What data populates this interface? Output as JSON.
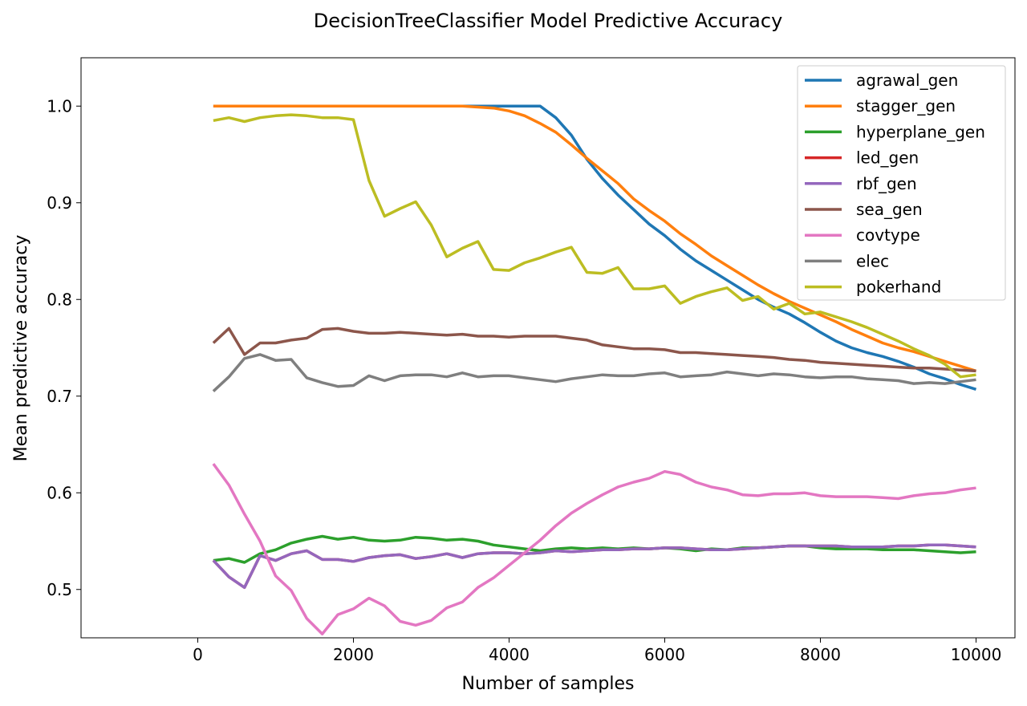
{
  "chart_data": {
    "type": "line",
    "title": "DecisionTreeClassifier Model Predictive Accuracy",
    "xlabel": "Number of samples",
    "ylabel": "Mean predictive accuracy",
    "xlim": [
      -1500,
      10500
    ],
    "ylim": [
      0.45,
      1.05
    ],
    "xticks": [
      0,
      2000,
      4000,
      6000,
      8000,
      10000
    ],
    "xtick_labels": [
      "0",
      "2000",
      "4000",
      "6000",
      "8000",
      "10000"
    ],
    "yticks": [
      0.5,
      0.6,
      0.7,
      0.8,
      0.9,
      1.0
    ],
    "ytick_labels": [
      "0.5",
      "0.6",
      "0.7",
      "0.8",
      "0.9",
      "1.0"
    ],
    "grid": false,
    "legend_position": "top-right",
    "x": [
      200,
      400,
      600,
      800,
      1000,
      1200,
      1400,
      1600,
      1800,
      2000,
      2200,
      2400,
      2600,
      2800,
      3000,
      3200,
      3400,
      3600,
      3800,
      4000,
      4200,
      4400,
      4600,
      4800,
      5000,
      5200,
      5400,
      5600,
      5800,
      6000,
      6200,
      6400,
      6600,
      6800,
      7000,
      7200,
      7400,
      7600,
      7800,
      8000,
      8200,
      8400,
      8600,
      8800,
      9000,
      9200,
      9400,
      9600,
      9800,
      10000
    ],
    "series": [
      {
        "name": "agrawal_gen",
        "color": "#1f77b4",
        "values": [
          1.0,
          1.0,
          1.0,
          1.0,
          1.0,
          1.0,
          1.0,
          1.0,
          1.0,
          1.0,
          1.0,
          1.0,
          1.0,
          1.0,
          1.0,
          1.0,
          1.0,
          1.0,
          1.0,
          1.0,
          1.0,
          1.0,
          0.988,
          0.97,
          0.945,
          0.925,
          0.908,
          0.893,
          0.878,
          0.866,
          0.852,
          0.84,
          0.83,
          0.82,
          0.81,
          0.8,
          0.792,
          0.785,
          0.776,
          0.766,
          0.757,
          0.75,
          0.745,
          0.741,
          0.736,
          0.73,
          0.723,
          0.718,
          0.712,
          0.707
        ]
      },
      {
        "name": "stagger_gen",
        "color": "#ff7f0e",
        "values": [
          1.0,
          1.0,
          1.0,
          1.0,
          1.0,
          1.0,
          1.0,
          1.0,
          1.0,
          1.0,
          1.0,
          1.0,
          1.0,
          1.0,
          1.0,
          1.0,
          1.0,
          0.999,
          0.998,
          0.995,
          0.99,
          0.982,
          0.973,
          0.96,
          0.946,
          0.933,
          0.92,
          0.904,
          0.892,
          0.881,
          0.868,
          0.857,
          0.845,
          0.835,
          0.825,
          0.815,
          0.806,
          0.798,
          0.791,
          0.784,
          0.777,
          0.769,
          0.762,
          0.755,
          0.75,
          0.746,
          0.741,
          0.736,
          0.731,
          0.726
        ]
      },
      {
        "name": "hyperplane_gen",
        "color": "#2ca02c",
        "values": [
          0.53,
          0.532,
          0.528,
          0.537,
          0.541,
          0.548,
          0.552,
          0.555,
          0.552,
          0.554,
          0.551,
          0.55,
          0.551,
          0.554,
          0.553,
          0.551,
          0.552,
          0.55,
          0.546,
          0.544,
          0.542,
          0.54,
          0.542,
          0.543,
          0.542,
          0.543,
          0.542,
          0.543,
          0.542,
          0.543,
          0.542,
          0.54,
          0.542,
          0.541,
          0.543,
          0.543,
          0.544,
          0.545,
          0.545,
          0.543,
          0.542,
          0.542,
          0.542,
          0.541,
          0.541,
          0.541,
          0.54,
          0.539,
          0.538,
          0.539
        ]
      },
      {
        "name": "led_gen",
        "color": "#d62728",
        "values": [
          0.53,
          0.513,
          0.502,
          0.535,
          0.53,
          0.537,
          0.54,
          0.531,
          0.531,
          0.529,
          0.533,
          0.535,
          0.536,
          0.532,
          0.534,
          0.537,
          0.533,
          0.537,
          0.538,
          0.538,
          0.537,
          0.538,
          0.54,
          0.539,
          0.54,
          0.541,
          0.541,
          0.542,
          0.542,
          0.543,
          0.543,
          0.542,
          0.541,
          0.541,
          0.542,
          0.543,
          0.544,
          0.545,
          0.545,
          0.545,
          0.545,
          0.544,
          0.544,
          0.544,
          0.545,
          0.545,
          0.546,
          0.546,
          0.545,
          0.544
        ]
      },
      {
        "name": "rbf_gen",
        "color": "#9467bd",
        "values": [
          0.53,
          0.513,
          0.502,
          0.535,
          0.53,
          0.537,
          0.54,
          0.531,
          0.531,
          0.529,
          0.533,
          0.535,
          0.536,
          0.532,
          0.534,
          0.537,
          0.533,
          0.537,
          0.538,
          0.538,
          0.537,
          0.538,
          0.54,
          0.539,
          0.54,
          0.541,
          0.541,
          0.542,
          0.542,
          0.543,
          0.543,
          0.542,
          0.541,
          0.541,
          0.542,
          0.543,
          0.544,
          0.545,
          0.545,
          0.545,
          0.545,
          0.544,
          0.544,
          0.544,
          0.545,
          0.545,
          0.546,
          0.546,
          0.545,
          0.544
        ]
      },
      {
        "name": "sea_gen",
        "color": "#8c564b",
        "values": [
          0.755,
          0.77,
          0.743,
          0.755,
          0.755,
          0.758,
          0.76,
          0.769,
          0.77,
          0.767,
          0.765,
          0.765,
          0.766,
          0.765,
          0.764,
          0.763,
          0.764,
          0.762,
          0.762,
          0.761,
          0.762,
          0.762,
          0.762,
          0.76,
          0.758,
          0.753,
          0.751,
          0.749,
          0.749,
          0.748,
          0.745,
          0.745,
          0.744,
          0.743,
          0.742,
          0.741,
          0.74,
          0.738,
          0.737,
          0.735,
          0.734,
          0.733,
          0.732,
          0.731,
          0.73,
          0.729,
          0.729,
          0.728,
          0.727,
          0.726
        ]
      },
      {
        "name": "covtype",
        "color": "#e377c2",
        "values": [
          0.63,
          0.608,
          0.578,
          0.55,
          0.514,
          0.499,
          0.47,
          0.454,
          0.474,
          0.48,
          0.491,
          0.483,
          0.467,
          0.463,
          0.468,
          0.481,
          0.487,
          0.502,
          0.512,
          0.525,
          0.538,
          0.551,
          0.566,
          0.579,
          0.589,
          0.598,
          0.606,
          0.611,
          0.615,
          0.622,
          0.619,
          0.611,
          0.606,
          0.603,
          0.598,
          0.597,
          0.599,
          0.599,
          0.6,
          0.597,
          0.596,
          0.596,
          0.596,
          0.595,
          0.594,
          0.597,
          0.599,
          0.6,
          0.603,
          0.605
        ]
      },
      {
        "name": "elec",
        "color": "#7f7f7f",
        "values": [
          0.705,
          0.72,
          0.739,
          0.743,
          0.737,
          0.738,
          0.719,
          0.714,
          0.71,
          0.711,
          0.721,
          0.716,
          0.721,
          0.722,
          0.722,
          0.72,
          0.724,
          0.72,
          0.721,
          0.721,
          0.719,
          0.717,
          0.715,
          0.718,
          0.72,
          0.722,
          0.721,
          0.721,
          0.723,
          0.724,
          0.72,
          0.721,
          0.722,
          0.725,
          0.723,
          0.721,
          0.723,
          0.722,
          0.72,
          0.719,
          0.72,
          0.72,
          0.718,
          0.717,
          0.716,
          0.713,
          0.714,
          0.713,
          0.715,
          0.717
        ]
      },
      {
        "name": "pokerhand",
        "color": "#bcbd22",
        "values": [
          0.985,
          0.988,
          0.984,
          0.988,
          0.99,
          0.991,
          0.99,
          0.988,
          0.988,
          0.986,
          0.923,
          0.886,
          0.894,
          0.901,
          0.877,
          0.844,
          0.853,
          0.86,
          0.831,
          0.83,
          0.838,
          0.843,
          0.849,
          0.854,
          0.828,
          0.827,
          0.833,
          0.811,
          0.811,
          0.814,
          0.796,
          0.803,
          0.808,
          0.812,
          0.799,
          0.803,
          0.79,
          0.796,
          0.785,
          0.787,
          0.782,
          0.777,
          0.771,
          0.764,
          0.757,
          0.749,
          0.742,
          0.733,
          0.72,
          0.722
        ]
      }
    ]
  }
}
